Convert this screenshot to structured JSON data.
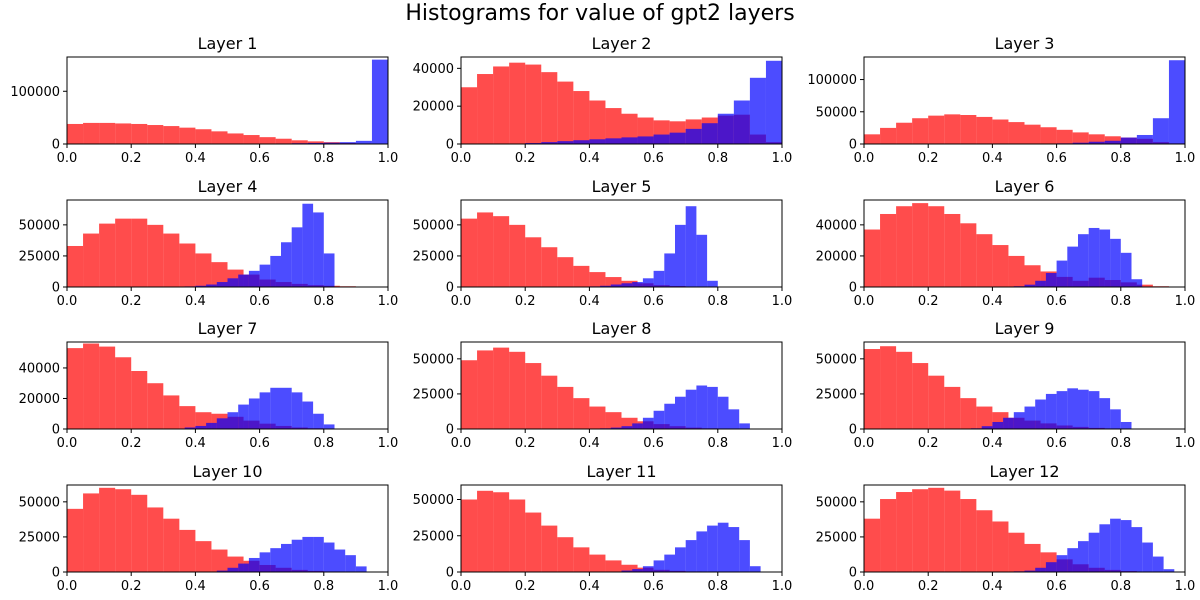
{
  "figure": {
    "title": "Histograms for value of gpt2 layers"
  },
  "chart_data": [
    {
      "type": "histogram",
      "title": "Layer 1",
      "xlim": [
        0,
        1
      ],
      "ylim": [
        0,
        165000
      ],
      "xticks": [
        "0.0",
        "0.2",
        "0.4",
        "0.6",
        "0.8",
        "1.0"
      ],
      "yticks": [
        {
          "value": 0,
          "label": "0"
        },
        {
          "value": 100000,
          "label": "100000"
        }
      ],
      "series": [
        {
          "color": "#ff0000",
          "alpha": 0.7,
          "values": [
            38000,
            40000,
            40000,
            39000,
            38000,
            36000,
            34000,
            31000,
            28000,
            24000,
            20000,
            17000,
            13000,
            10000,
            7000,
            5000,
            3500,
            2000,
            1000,
            500
          ]
        },
        {
          "color": "#0000ff",
          "alpha": 0.7,
          "values": [
            0,
            0,
            0,
            0,
            0,
            0,
            0,
            0,
            0,
            0,
            0,
            0,
            500,
            1000,
            1500,
            2000,
            2500,
            3500,
            6000,
            160000
          ]
        }
      ]
    },
    {
      "type": "histogram",
      "title": "Layer 2",
      "xlim": [
        0,
        1
      ],
      "ylim": [
        0,
        46000
      ],
      "xticks": [
        "0.0",
        "0.2",
        "0.4",
        "0.6",
        "0.8",
        "1.0"
      ],
      "yticks": [
        {
          "value": 0,
          "label": "0"
        },
        {
          "value": 20000,
          "label": "20000"
        },
        {
          "value": 40000,
          "label": "40000"
        }
      ],
      "series": [
        {
          "color": "#ff0000",
          "alpha": 0.7,
          "values": [
            30000,
            37000,
            41000,
            43000,
            42000,
            38000,
            33000,
            28000,
            23000,
            19000,
            16000,
            14000,
            12500,
            12000,
            13000,
            14000,
            15000,
            15500,
            5000,
            1000
          ]
        },
        {
          "color": "#0000ff",
          "alpha": 0.7,
          "values": [
            0,
            0,
            0,
            0,
            500,
            1000,
            1500,
            2000,
            2500,
            3000,
            3500,
            4000,
            5000,
            6000,
            8000,
            11000,
            16000,
            23000,
            35000,
            44000
          ]
        }
      ]
    },
    {
      "type": "histogram",
      "title": "Layer 3",
      "xlim": [
        0,
        1
      ],
      "ylim": [
        0,
        135000
      ],
      "xticks": [
        "0.0",
        "0.2",
        "0.4",
        "0.6",
        "0.8",
        "1.0"
      ],
      "yticks": [
        {
          "value": 0,
          "label": "0"
        },
        {
          "value": 50000,
          "label": "50000"
        },
        {
          "value": 100000,
          "label": "100000"
        }
      ],
      "series": [
        {
          "color": "#ff0000",
          "alpha": 0.7,
          "values": [
            15000,
            25000,
            33000,
            40000,
            44000,
            46000,
            45000,
            42000,
            38000,
            34000,
            30000,
            26000,
            22000,
            18000,
            15000,
            12000,
            10000,
            8000,
            3000,
            1000
          ]
        },
        {
          "color": "#0000ff",
          "alpha": 0.7,
          "values": [
            0,
            0,
            0,
            0,
            0,
            0,
            0,
            0,
            0,
            0,
            0,
            500,
            1000,
            2000,
            3500,
            5000,
            10000,
            14000,
            40000,
            130000
          ]
        }
      ]
    },
    {
      "type": "histogram",
      "title": "Layer 4",
      "xlim": [
        0,
        1
      ],
      "ylim": [
        0,
        70000
      ],
      "xticks": [
        "0.0",
        "0.2",
        "0.4",
        "0.6",
        "0.8",
        "1.0"
      ],
      "yticks": [
        {
          "value": 0,
          "label": "0"
        },
        {
          "value": 25000,
          "label": "25000"
        },
        {
          "value": 50000,
          "label": "50000"
        }
      ],
      "series": [
        {
          "color": "#ff0000",
          "alpha": 0.7,
          "values": [
            33000,
            43000,
            51000,
            55000,
            55000,
            50000,
            43000,
            35000,
            27000,
            20000,
            14000,
            10000,
            6000,
            4000,
            2500,
            1500,
            1000,
            600,
            300,
            100
          ]
        },
        {
          "color": "#0000ff",
          "alpha": 0.7,
          "values": [
            0,
            0,
            0,
            0,
            0,
            0,
            0,
            0,
            0,
            0,
            0,
            500,
            1000,
            2000,
            4000,
            7000,
            10000,
            13000,
            18000,
            25000,
            36000,
            48000,
            67000,
            60000,
            27000,
            0,
            0,
            0,
            0,
            0
          ]
        }
      ]
    },
    {
      "type": "histogram",
      "title": "Layer 5",
      "xlim": [
        0,
        1
      ],
      "ylim": [
        0,
        70000
      ],
      "xticks": [
        "0.0",
        "0.2",
        "0.4",
        "0.6",
        "0.8",
        "1.0"
      ],
      "yticks": [
        {
          "value": 0,
          "label": "0"
        },
        {
          "value": 25000,
          "label": "25000"
        },
        {
          "value": 50000,
          "label": "50000"
        }
      ],
      "series": [
        {
          "color": "#ff0000",
          "alpha": 0.7,
          "values": [
            55000,
            60000,
            57000,
            50000,
            40000,
            32000,
            24000,
            17000,
            12000,
            8000,
            5000,
            3000,
            1500,
            800,
            400,
            200,
            100,
            0,
            0,
            0
          ]
        },
        {
          "color": "#0000ff",
          "alpha": 0.7,
          "values": [
            0,
            0,
            0,
            0,
            0,
            0,
            0,
            0,
            0,
            0,
            0,
            0,
            500,
            1000,
            2000,
            3000,
            4000,
            7000,
            13000,
            27000,
            50000,
            65000,
            42000,
            5000,
            0,
            0,
            0,
            0,
            0,
            0
          ]
        }
      ]
    },
    {
      "type": "histogram",
      "title": "Layer 6",
      "xlim": [
        0,
        1
      ],
      "ylim": [
        0,
        56000
      ],
      "xticks": [
        "0.0",
        "0.2",
        "0.4",
        "0.6",
        "0.8",
        "1.0"
      ],
      "yticks": [
        {
          "value": 0,
          "label": "0"
        },
        {
          "value": 20000,
          "label": "20000"
        },
        {
          "value": 40000,
          "label": "40000"
        }
      ],
      "series": [
        {
          "color": "#ff0000",
          "alpha": 0.7,
          "values": [
            37000,
            47000,
            52000,
            54000,
            52000,
            47000,
            41000,
            34000,
            27000,
            20000,
            14000,
            10000,
            6500,
            4000,
            6000,
            4500,
            3000,
            1500,
            500,
            100
          ]
        },
        {
          "color": "#0000ff",
          "alpha": 0.7,
          "values": [
            0,
            0,
            0,
            0,
            0,
            0,
            0,
            0,
            0,
            0,
            0,
            0,
            0,
            0,
            500,
            1500,
            4000,
            9000,
            17000,
            26000,
            34000,
            38000,
            37000,
            31000,
            22000,
            5000,
            0,
            0,
            0,
            0
          ]
        }
      ]
    },
    {
      "type": "histogram",
      "title": "Layer 7",
      "xlim": [
        0,
        1
      ],
      "ylim": [
        0,
        57000
      ],
      "xticks": [
        "0.0",
        "0.2",
        "0.4",
        "0.6",
        "0.8",
        "1.0"
      ],
      "yticks": [
        {
          "value": 0,
          "label": "0"
        },
        {
          "value": 20000,
          "label": "20000"
        },
        {
          "value": 40000,
          "label": "40000"
        }
      ],
      "series": [
        {
          "color": "#ff0000",
          "alpha": 0.7,
          "values": [
            53000,
            56000,
            54000,
            47000,
            38000,
            30000,
            22000,
            15000,
            11000,
            10000,
            8000,
            5500,
            3500,
            2000,
            1000,
            500,
            200,
            100,
            0,
            0
          ]
        },
        {
          "color": "#0000ff",
          "alpha": 0.7,
          "values": [
            0,
            0,
            0,
            0,
            0,
            0,
            0,
            0,
            0,
            0,
            0,
            1000,
            2000,
            4000,
            7000,
            11000,
            16000,
            20000,
            24000,
            27000,
            27000,
            24000,
            18000,
            10000,
            3000,
            0,
            0,
            0,
            0,
            0
          ]
        }
      ]
    },
    {
      "type": "histogram",
      "title": "Layer 8",
      "xlim": [
        0,
        1
      ],
      "ylim": [
        0,
        62000
      ],
      "xticks": [
        "0.0",
        "0.2",
        "0.4",
        "0.6",
        "0.8",
        "1.0"
      ],
      "yticks": [
        {
          "value": 0,
          "label": "0"
        },
        {
          "value": 25000,
          "label": "25000"
        },
        {
          "value": 50000,
          "label": "50000"
        }
      ],
      "series": [
        {
          "color": "#ff0000",
          "alpha": 0.7,
          "values": [
            49000,
            56000,
            58000,
            55000,
            47000,
            38000,
            30000,
            22000,
            16000,
            12000,
            8000,
            5500,
            3500,
            2000,
            1000,
            500,
            200,
            100,
            0,
            0
          ]
        },
        {
          "color": "#0000ff",
          "alpha": 0.7,
          "values": [
            0,
            0,
            0,
            0,
            0,
            0,
            0,
            0,
            0,
            0,
            0,
            0,
            0,
            500,
            1000,
            2000,
            4000,
            8000,
            13000,
            18000,
            23000,
            28000,
            31000,
            30000,
            23000,
            14000,
            4000,
            0,
            0,
            0
          ]
        }
      ]
    },
    {
      "type": "histogram",
      "title": "Layer 9",
      "xlim": [
        0,
        1
      ],
      "ylim": [
        0,
        62000
      ],
      "xticks": [
        "0.0",
        "0.2",
        "0.4",
        "0.6",
        "0.8",
        "1.0"
      ],
      "yticks": [
        {
          "value": 0,
          "label": "0"
        },
        {
          "value": 25000,
          "label": "25000"
        },
        {
          "value": 50000,
          "label": "50000"
        }
      ],
      "series": [
        {
          "color": "#ff0000",
          "alpha": 0.7,
          "values": [
            57000,
            59000,
            55000,
            47000,
            38000,
            30000,
            22000,
            16000,
            12000,
            8000,
            6000,
            4000,
            2500,
            1500,
            800,
            400,
            200,
            100,
            0,
            0
          ]
        },
        {
          "color": "#0000ff",
          "alpha": 0.7,
          "values": [
            0,
            0,
            0,
            0,
            0,
            0,
            0,
            0,
            0,
            0,
            500,
            2000,
            5000,
            8000,
            12000,
            16000,
            21000,
            25000,
            27000,
            29000,
            28000,
            27000,
            22000,
            14000,
            5000,
            0,
            0,
            0,
            0,
            0
          ]
        }
      ]
    },
    {
      "type": "histogram",
      "title": "Layer 10",
      "xlim": [
        0,
        1
      ],
      "ylim": [
        0,
        62000
      ],
      "xticks": [
        "0.0",
        "0.2",
        "0.4",
        "0.6",
        "0.8",
        "1.0"
      ],
      "yticks": [
        {
          "value": 0,
          "label": "0"
        },
        {
          "value": 25000,
          "label": "25000"
        },
        {
          "value": 50000,
          "label": "50000"
        }
      ],
      "series": [
        {
          "color": "#ff0000",
          "alpha": 0.7,
          "values": [
            45000,
            56000,
            60000,
            59000,
            55000,
            46000,
            38000,
            30000,
            22000,
            16000,
            11000,
            8000,
            5000,
            3000,
            1500,
            800,
            400,
            200,
            100,
            0
          ]
        },
        {
          "color": "#0000ff",
          "alpha": 0.7,
          "values": [
            0,
            0,
            0,
            0,
            0,
            0,
            0,
            0,
            0,
            0,
            0,
            0,
            0,
            0,
            1000,
            3000,
            6000,
            10000,
            14000,
            17000,
            20000,
            23000,
            25000,
            25000,
            21000,
            16000,
            12000,
            4000,
            0,
            0
          ]
        }
      ]
    },
    {
      "type": "histogram",
      "title": "Layer 11",
      "xlim": [
        0,
        1
      ],
      "ylim": [
        0,
        60000
      ],
      "xticks": [
        "0.0",
        "0.2",
        "0.4",
        "0.6",
        "0.8",
        "1.0"
      ],
      "yticks": [
        {
          "value": 0,
          "label": "0"
        },
        {
          "value": 25000,
          "label": "25000"
        },
        {
          "value": 50000,
          "label": "50000"
        }
      ],
      "series": [
        {
          "color": "#ff0000",
          "alpha": 0.7,
          "values": [
            50000,
            56000,
            55000,
            50000,
            41000,
            32000,
            24000,
            17000,
            12000,
            8000,
            5000,
            3000,
            1500,
            800,
            400,
            200,
            100,
            0,
            0,
            0
          ]
        },
        {
          "color": "#0000ff",
          "alpha": 0.7,
          "values": [
            0,
            0,
            0,
            0,
            0,
            0,
            0,
            0,
            0,
            0,
            0,
            0,
            0,
            0,
            0,
            1000,
            2000,
            4000,
            8000,
            12000,
            17000,
            22000,
            28000,
            32000,
            34000,
            31000,
            22000,
            4000,
            0,
            0
          ]
        }
      ]
    },
    {
      "type": "histogram",
      "title": "Layer 12",
      "xlim": [
        0,
        1
      ],
      "ylim": [
        0,
        62000
      ],
      "xticks": [
        "0.0",
        "0.2",
        "0.4",
        "0.6",
        "0.8",
        "1.0"
      ],
      "yticks": [
        {
          "value": 0,
          "label": "0"
        },
        {
          "value": 25000,
          "label": "25000"
        },
        {
          "value": 50000,
          "label": "50000"
        }
      ],
      "series": [
        {
          "color": "#ff0000",
          "alpha": 0.7,
          "values": [
            38000,
            52000,
            57000,
            59000,
            60000,
            58000,
            52000,
            44000,
            36000,
            28000,
            20000,
            14000,
            9000,
            5500,
            3000,
            1500,
            700,
            300,
            100,
            0
          ]
        },
        {
          "color": "#0000ff",
          "alpha": 0.7,
          "values": [
            0,
            0,
            0,
            0,
            0,
            0,
            0,
            0,
            0,
            0,
            0,
            0,
            0,
            0,
            500,
            1000,
            3000,
            7000,
            12000,
            17000,
            22000,
            28000,
            34000,
            38000,
            37000,
            32000,
            21000,
            11000,
            2000,
            0
          ]
        }
      ]
    }
  ]
}
